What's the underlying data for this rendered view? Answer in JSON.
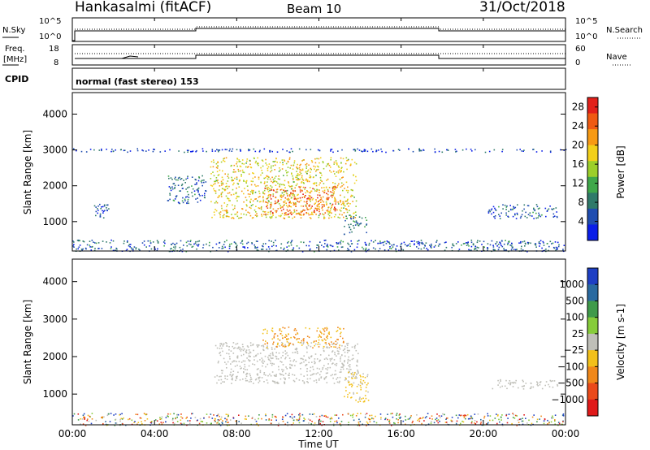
{
  "header": {
    "station": "Hankasalmi (fitACF)",
    "beam": "Beam 10",
    "date": "31/Oct/2018"
  },
  "strip_noise": {
    "left_label": "N.Sky",
    "left_ticks": [
      "10^5",
      "10^0"
    ],
    "right_label": "N.Search",
    "right_ticks": [
      "10^5",
      "10^0"
    ]
  },
  "strip_freq": {
    "left_label_1": "Freq.",
    "left_label_2": "[MHz]",
    "left_ticks": [
      "18",
      "8"
    ],
    "right_label": "Nave",
    "right_ticks": [
      "60",
      "0"
    ]
  },
  "strip_cpid": {
    "label": "CPID",
    "mode_text": "normal (fast stereo) 153"
  },
  "chart_data": [
    {
      "type": "heatmap",
      "title": "",
      "xlabel": "Time UT",
      "ylabel": "Slant Range [km]",
      "x_ticks": [
        "00:00",
        "04:00",
        "08:00",
        "12:00",
        "16:00",
        "20:00",
        "00:00"
      ],
      "xlim_hours": [
        0,
        24
      ],
      "ylim_km": [
        180,
        4600
      ],
      "y_ticks": [
        1000,
        2000,
        3000,
        4000
      ],
      "colorbar": {
        "label": "Power [dB]",
        "ticks": [
          "4",
          "8",
          "12",
          "16",
          "20",
          "24",
          "28"
        ],
        "range": [
          0,
          30
        ],
        "colors": [
          "#0a1ee8",
          "#1f4db0",
          "#2f7a6a",
          "#3fa84a",
          "#9ccf2a",
          "#f2d01a",
          "#f79a14",
          "#ef5a12",
          "#e2201a"
        ]
      },
      "regions": [
        {
          "t_start": 0.0,
          "t_end": 24.0,
          "r_start": 180,
          "r_end": 500,
          "mean_level": 6,
          "note": "near-range scatter"
        },
        {
          "t_start": 6.7,
          "t_end": 13.8,
          "r_start": 1100,
          "r_end": 2800,
          "mean_level": 18
        },
        {
          "t_start": 9.3,
          "t_end": 12.8,
          "r_start": 1200,
          "r_end": 2000,
          "mean_level": 24
        },
        {
          "t_start": 13.2,
          "t_end": 14.3,
          "r_start": 650,
          "r_end": 1200,
          "mean_level": 8
        },
        {
          "t_start": 4.6,
          "t_end": 6.5,
          "r_start": 1500,
          "r_end": 2300,
          "mean_level": 6
        },
        {
          "t_start": 1.0,
          "t_end": 1.8,
          "r_start": 1100,
          "r_end": 1500,
          "mean_level": 5
        },
        {
          "t_start": 20.2,
          "t_end": 23.6,
          "r_start": 1100,
          "r_end": 1500,
          "mean_level": 6
        },
        {
          "t_start": 0.0,
          "t_end": 24.0,
          "r_start": 2950,
          "r_end": 3050,
          "mean_level": 4,
          "note": "sparse line near 3000 km"
        }
      ]
    },
    {
      "type": "heatmap",
      "title": "",
      "xlabel": "Time UT",
      "ylabel": "Slant Range [km]",
      "x_ticks": [
        "00:00",
        "04:00",
        "08:00",
        "12:00",
        "16:00",
        "20:00",
        "00:00"
      ],
      "xlim_hours": [
        0,
        24
      ],
      "ylim_km": [
        180,
        4600
      ],
      "y_ticks": [
        1000,
        2000,
        3000,
        4000
      ],
      "colorbar": {
        "label": "Velocity [m s-1]",
        "ticks": [
          "1000",
          "500",
          "100",
          "25",
          "−25",
          "−100",
          "−500",
          "−1000"
        ],
        "colors": [
          "#1e3fc4",
          "#2a6aa0",
          "#3f9a4a",
          "#86cc3a",
          "#bfbfb8",
          "#f2c01a",
          "#f0881a",
          "#ea4a1a",
          "#e01a1a"
        ]
      },
      "regions": [
        {
          "t_start": 0.0,
          "t_end": 24.0,
          "r_start": 180,
          "r_end": 500,
          "velocity": "mixed"
        },
        {
          "t_start": 6.9,
          "t_end": 13.9,
          "r_start": 1300,
          "r_end": 2400,
          "velocity": "ground scatter (-25 to 25)"
        },
        {
          "t_start": 9.2,
          "t_end": 13.2,
          "r_start": 2250,
          "r_end": 2800,
          "velocity": "-100 to -500"
        },
        {
          "t_start": 13.2,
          "t_end": 14.4,
          "r_start": 800,
          "r_end": 1600,
          "velocity": "-100"
        },
        {
          "t_start": 20.4,
          "t_end": 23.6,
          "r_start": 1150,
          "r_end": 1400,
          "velocity": "ground scatter"
        }
      ]
    }
  ]
}
